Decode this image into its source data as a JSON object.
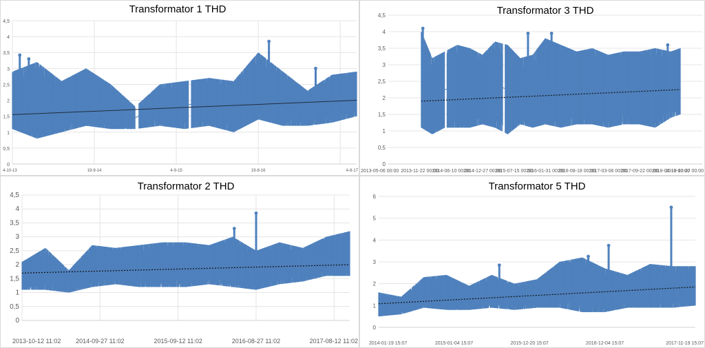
{
  "chart_data": [
    {
      "id": "p1",
      "type": "area",
      "title": "Transformator 1 THD",
      "series_color": "#4f81bd",
      "ylim": [
        0,
        4.5
      ],
      "y_ticks": [
        "0",
        "0,5",
        "1",
        "1,5",
        "2",
        "2,5",
        "3",
        "3,5",
        "4",
        "4,5"
      ],
      "x_ticks": [
        "4-10-13",
        "19-9-14",
        "4-9-15",
        "19-8-16",
        "4-8-17"
      ],
      "x_tick_pos": [
        0,
        1,
        2,
        3,
        4
      ],
      "x_range": [
        0,
        4.2
      ],
      "gridlines": "vertical",
      "breaks": [
        [
          1.5,
          1.54
        ],
        [
          2.15,
          2.18
        ]
      ],
      "envelope_x": [
        0,
        0.3,
        0.6,
        0.9,
        1.2,
        1.5,
        1.8,
        2.1,
        2.4,
        2.7,
        3.0,
        3.3,
        3.6,
        3.9,
        4.2
      ],
      "upper": [
        2.9,
        3.2,
        2.6,
        3.0,
        2.5,
        1.8,
        2.5,
        2.6,
        2.7,
        2.6,
        3.5,
        2.9,
        2.3,
        2.8,
        2.9
      ],
      "lower": [
        1.1,
        0.8,
        1.0,
        1.2,
        1.1,
        1.1,
        1.2,
        1.1,
        1.2,
        1.0,
        1.4,
        1.2,
        1.2,
        1.3,
        1.5
      ],
      "trend": [
        1.55,
        2.0
      ],
      "spikes": [
        [
          0.09,
          3.42
        ],
        [
          3.13,
          3.85
        ],
        [
          0.2,
          3.3
        ],
        [
          3.7,
          3.0
        ]
      ]
    },
    {
      "id": "p3",
      "type": "area",
      "title": "Transformator 3 THD",
      "series_color": "#4f81bd",
      "ylim": [
        0,
        4.5
      ],
      "y_ticks": [
        "0",
        "0,5",
        "1",
        "1,5",
        "2",
        "2,5",
        "3",
        "3,5",
        "4",
        "4,5"
      ],
      "x_ticks": [
        "2013-05-06 00:00",
        "2013-11-22 00:00",
        "2014-06-10 00:00",
        "2014-12-27 00:00",
        "2015-07-15 00:00",
        "2016-01-31 00:00",
        "2016-08-18 00:00",
        "2017-03-06 00:00",
        "2017-09-22 00:00",
        "2018-04-10 00:00",
        "2018-10-27 00:00"
      ],
      "x_tick_pos": [
        0,
        1,
        2,
        3,
        4,
        5,
        6,
        7,
        8,
        9,
        10
      ],
      "x_range": [
        0,
        10
      ],
      "gridlines": "none",
      "breaks": [
        [
          1.8,
          1.86
        ],
        [
          3.65,
          3.72
        ]
      ],
      "envelope_x": [
        1.05,
        1.4,
        1.8,
        2.2,
        2.6,
        3.0,
        3.4,
        3.8,
        4.2,
        4.6,
        5.0,
        5.5,
        6.0,
        6.5,
        7.0,
        7.5,
        8.0,
        8.5,
        9.0,
        9.3
      ],
      "upper": [
        4.0,
        3.2,
        3.4,
        3.6,
        3.5,
        3.3,
        3.7,
        3.6,
        3.2,
        3.3,
        3.8,
        3.6,
        3.4,
        3.5,
        3.3,
        3.4,
        3.4,
        3.5,
        3.4,
        3.5
      ],
      "lower": [
        1.1,
        0.9,
        1.1,
        1.1,
        1.1,
        1.2,
        1.1,
        0.9,
        1.2,
        1.1,
        1.2,
        1.1,
        1.2,
        1.2,
        1.1,
        1.2,
        1.2,
        1.1,
        1.4,
        1.5
      ],
      "trend": [
        1.9,
        2.25
      ],
      "trend_x": [
        1.05,
        9.3
      ],
      "spikes": [
        [
          1.1,
          4.1
        ],
        [
          4.45,
          3.95
        ],
        [
          5.2,
          3.95
        ],
        [
          8.9,
          3.6
        ]
      ]
    },
    {
      "id": "p2",
      "type": "area",
      "title": "Transformator 2 THD",
      "series_color": "#4f81bd",
      "ylim": [
        0,
        4.5
      ],
      "y_ticks": [
        "0",
        "0,5",
        "1",
        "1,5",
        "2",
        "2,5",
        "3",
        "3,5",
        "4",
        "4,5"
      ],
      "x_ticks": [
        "2013-10-12 11:02",
        "2014-09-27 11:02",
        "2015-09-12 11:02",
        "2016-08-27 11:02",
        "2017-08-12 11:02"
      ],
      "x_tick_pos": [
        0,
        1,
        2,
        3,
        4
      ],
      "x_range": [
        0,
        4.2
      ],
      "gridlines": "vertical",
      "breaks": [],
      "envelope_x": [
        0,
        0.3,
        0.6,
        0.9,
        1.2,
        1.5,
        1.8,
        2.1,
        2.4,
        2.7,
        3.0,
        3.3,
        3.6,
        3.9,
        4.2
      ],
      "upper": [
        2.1,
        2.6,
        1.8,
        2.7,
        2.6,
        2.7,
        2.8,
        2.8,
        2.7,
        3.0,
        2.5,
        2.8,
        2.6,
        3.0,
        3.2
      ],
      "lower": [
        1.1,
        1.1,
        1.0,
        1.2,
        1.3,
        1.2,
        1.2,
        1.2,
        1.3,
        1.2,
        1.1,
        1.3,
        1.4,
        1.6,
        1.6
      ],
      "trend": [
        1.7,
        2.0
      ],
      "spikes": [
        [
          3.0,
          3.85
        ],
        [
          2.72,
          3.3
        ]
      ]
    },
    {
      "id": "p5",
      "type": "area",
      "title": "Transformator 5 THD",
      "series_color": "#4f81bd",
      "ylim": [
        0,
        6
      ],
      "y_ticks": [
        "0",
        "1",
        "2",
        "3",
        "4",
        "5",
        "6"
      ],
      "x_ticks": [
        "2014-01-19 15:07",
        "2015-01-04 15:07",
        "2015-12-20 15:07",
        "2016-12-04 15:07",
        "2017-11-19 15:07"
      ],
      "x_tick_pos": [
        0,
        1,
        2,
        3,
        4
      ],
      "x_range": [
        0,
        4.2
      ],
      "gridlines": "none",
      "breaks": [],
      "envelope_x": [
        0,
        0.3,
        0.6,
        0.9,
        1.2,
        1.5,
        1.8,
        2.1,
        2.4,
        2.7,
        3.0,
        3.3,
        3.6,
        3.9,
        4.2
      ],
      "upper": [
        1.6,
        1.4,
        2.3,
        2.4,
        1.9,
        2.4,
        2.0,
        2.2,
        3.0,
        3.2,
        2.7,
        2.4,
        2.9,
        2.8,
        2.8
      ],
      "lower": [
        0.5,
        0.6,
        0.9,
        0.8,
        0.8,
        0.9,
        0.8,
        0.9,
        0.9,
        0.7,
        0.7,
        0.9,
        0.9,
        0.9,
        1.0
      ],
      "trend": [
        1.08,
        1.85
      ],
      "spikes": [
        [
          3.88,
          5.5
        ],
        [
          1.6,
          2.85
        ],
        [
          3.05,
          3.75
        ],
        [
          2.78,
          3.25
        ]
      ]
    }
  ]
}
